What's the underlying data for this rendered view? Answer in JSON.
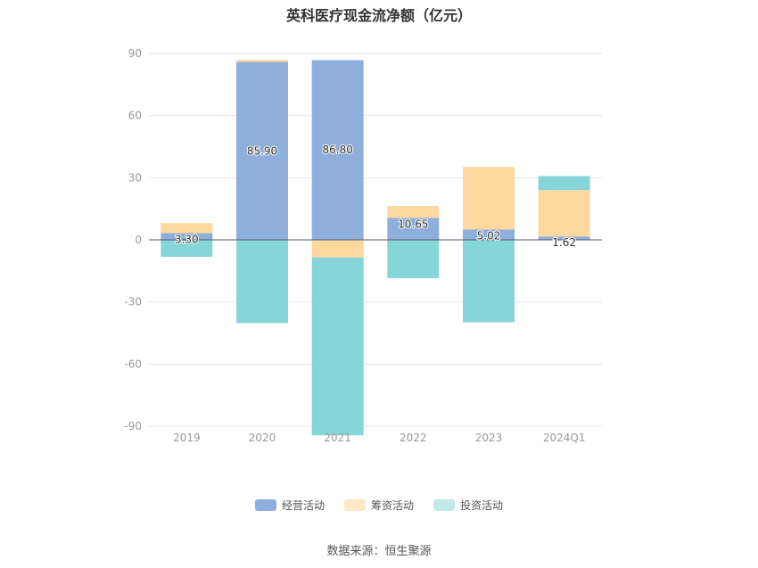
{
  "chart_data": {
    "type": "bar",
    "stacked": true,
    "title": "英科医疗现金流净额（亿元）",
    "categories": [
      "2019",
      "2020",
      "2021",
      "2022",
      "2023",
      "2024Q1"
    ],
    "ylim": [
      -90,
      90
    ],
    "yticks": [
      90,
      60,
      30,
      0,
      -30,
      -60,
      -90
    ],
    "grid": true,
    "legend_position": "bottom-center",
    "series": [
      {
        "name": "经营活动",
        "color": "#8eaedb",
        "values": [
          3.3,
          85.9,
          86.8,
          10.65,
          5.02,
          1.62
        ],
        "labels": [
          "3.30",
          "85.90",
          "86.80",
          "10.65",
          "5.02",
          "1.62"
        ]
      },
      {
        "name": "筹资活动",
        "color": "#fed99f",
        "values": [
          4.8,
          1.0,
          -8.5,
          5.7,
          30.2,
          22.4
        ]
      },
      {
        "name": "投资活动",
        "color": "#86d5d9",
        "values": [
          -8.2,
          -40.2,
          -85.9,
          -18.5,
          -39.8,
          6.8
        ]
      }
    ]
  },
  "legend": {
    "items": [
      {
        "name": "经营活动",
        "color": "#8eaedb"
      },
      {
        "name": "筹资活动",
        "color": "#fee8c6"
      },
      {
        "name": "投资活动",
        "color": "#bfe9eb"
      }
    ]
  },
  "source": "数据来源：恒生聚源"
}
